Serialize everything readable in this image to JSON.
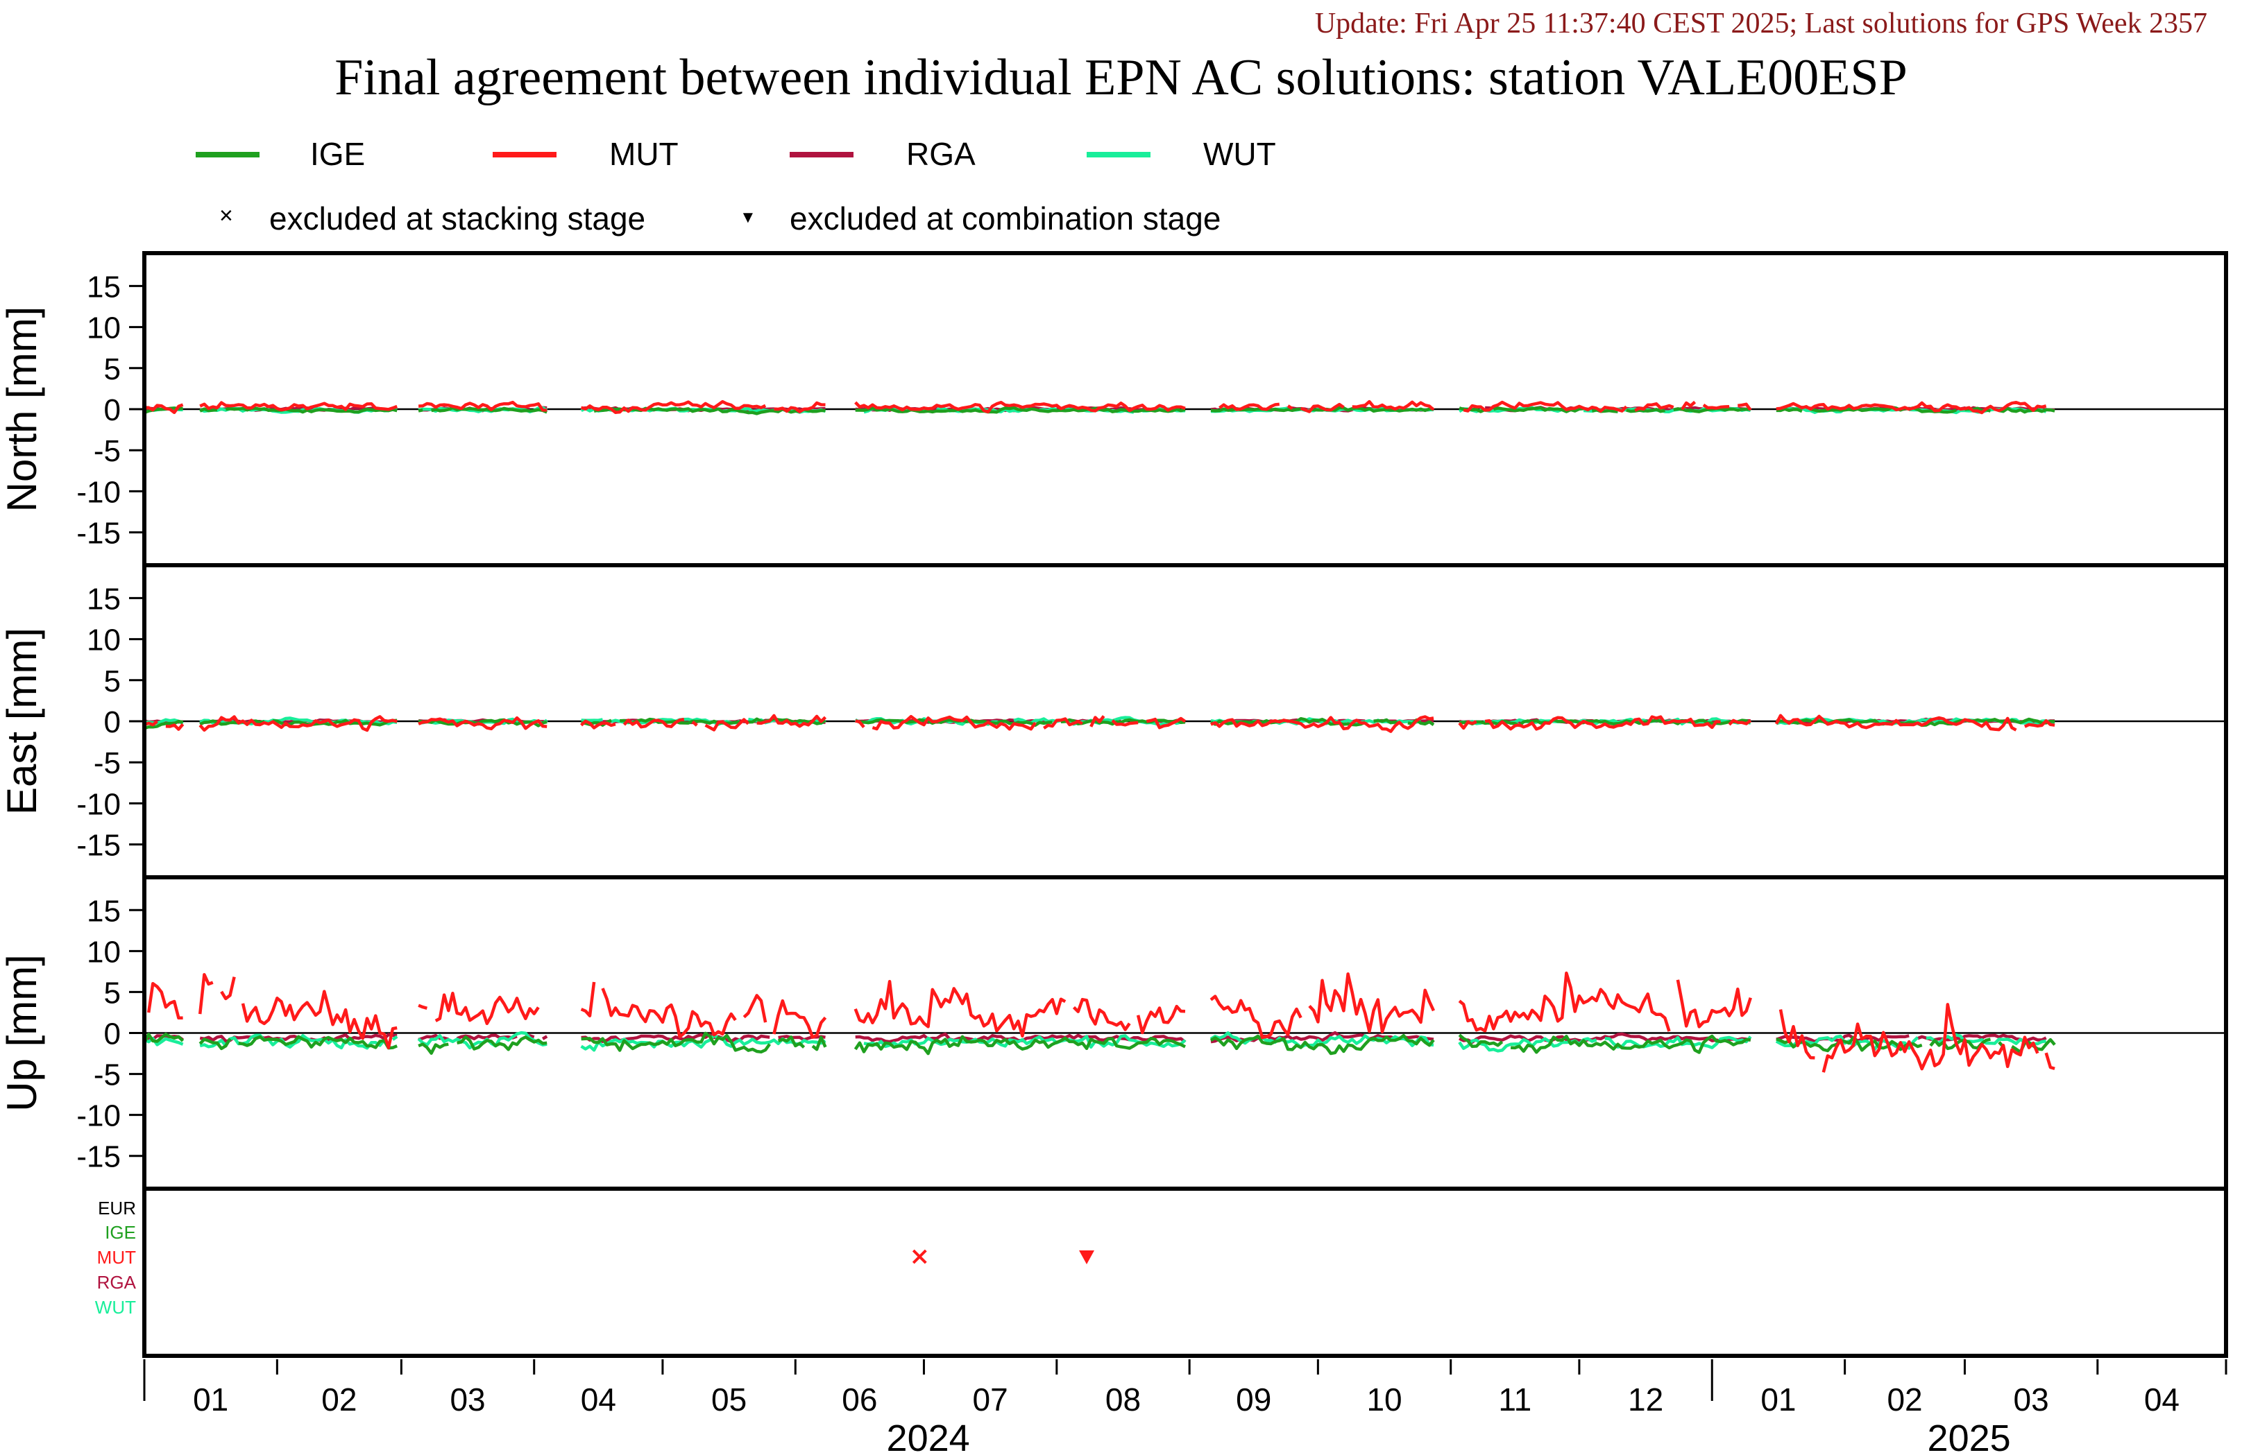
{
  "header": {
    "update": "Update: Fri Apr 25 11:37:40 CEST 2025; Last solutions for GPS Week 2357",
    "title": "Final agreement between individual EPN AC solutions: station VALE00ESP"
  },
  "legend": {
    "series": [
      {
        "name": "IGE",
        "color": "#1fa01f"
      },
      {
        "name": "MUT",
        "color": "#ff1a1a"
      },
      {
        "name": "RGA",
        "color": "#b0133f"
      },
      {
        "name": "WUT",
        "color": "#19ee9a"
      }
    ],
    "markers": [
      {
        "symbol": "×",
        "label": "excluded at stacking stage"
      },
      {
        "symbol": "▼",
        "label": "excluded at combination stage"
      }
    ]
  },
  "chart_data": {
    "type": "line",
    "x_axis": {
      "month_ticks": [
        "01",
        "02",
        "03",
        "04",
        "05",
        "06",
        "07",
        "08",
        "09",
        "10",
        "11",
        "12",
        "01",
        "02",
        "03",
        "04"
      ],
      "year_labels": [
        "2024",
        "2025"
      ],
      "range": [
        "2024-01-01",
        "2025-04-30"
      ]
    },
    "panels": [
      {
        "ylabel": "North [mm]",
        "ylim": [
          -19,
          19
        ],
        "yticks": [
          15,
          10,
          5,
          0,
          -5,
          -10,
          -15
        ],
        "series": [
          {
            "name": "IGE",
            "mean": -0.1,
            "noise": 0.3
          },
          {
            "name": "MUT",
            "mean": 0.3,
            "noise": 0.7
          },
          {
            "name": "RGA",
            "mean": 0.0,
            "noise": 0.2
          },
          {
            "name": "WUT",
            "mean": -0.1,
            "noise": 0.3
          }
        ]
      },
      {
        "ylabel": "East [mm]",
        "ylim": [
          -19,
          19
        ],
        "yticks": [
          15,
          10,
          5,
          0,
          -5,
          -10,
          -15
        ],
        "series": [
          {
            "name": "IGE",
            "mean": -0.1,
            "noise": 0.4
          },
          {
            "name": "MUT",
            "mean": -0.2,
            "noise": 1.0
          },
          {
            "name": "RGA",
            "mean": 0.0,
            "noise": 0.2
          },
          {
            "name": "WUT",
            "mean": 0.0,
            "noise": 0.4
          }
        ]
      },
      {
        "ylabel": "Up [mm]",
        "ylim": [
          -19,
          19
        ],
        "yticks": [
          15,
          10,
          5,
          0,
          -5,
          -10,
          -15
        ],
        "series": [
          {
            "name": "IGE",
            "mean": -1.3,
            "noise": 1.2
          },
          {
            "name": "MUT",
            "mean": 2.2,
            "noise": 3.0
          },
          {
            "name": "RGA",
            "mean": -0.6,
            "noise": 0.5
          },
          {
            "name": "WUT",
            "mean": -1.0,
            "noise": 0.9
          }
        ]
      }
    ],
    "exclusion_panel": {
      "labels": [
        {
          "name": "EUR",
          "color": "#000000"
        },
        {
          "name": "IGE",
          "color": "#1fa01f"
        },
        {
          "name": "MUT",
          "color": "#ff1a1a"
        },
        {
          "name": "RGA",
          "color": "#b0133f"
        },
        {
          "name": "WUT",
          "color": "#19ee9a"
        }
      ],
      "events": [
        {
          "type": "stacking",
          "series": "MUT",
          "date": "2024-06-30"
        },
        {
          "type": "combination",
          "series": "MUT",
          "date": "2024-08-08"
        }
      ]
    },
    "last_date": "2025-03-22"
  }
}
